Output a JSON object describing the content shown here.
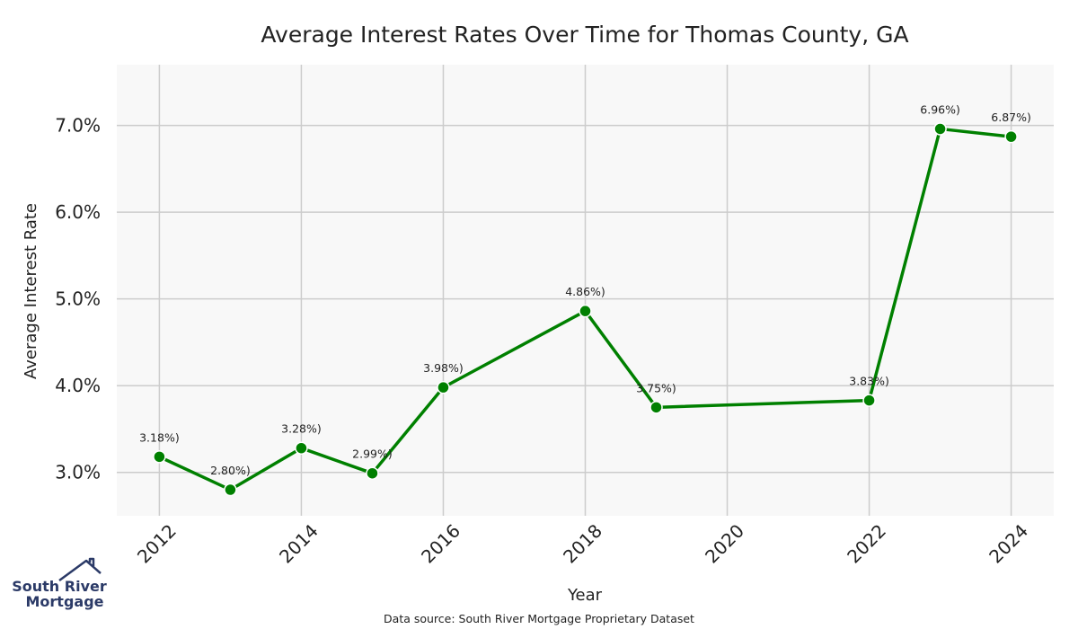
{
  "chart_data": {
    "type": "line",
    "title": "Average Interest Rates Over Time for Thomas County, GA",
    "xlabel": "Year",
    "ylabel": "Average Interest Rate",
    "x_ticks": [
      "2012",
      "2014",
      "2016",
      "2018",
      "2020",
      "2022",
      "2024"
    ],
    "y_ticks": [
      "3.0%",
      "4.0%",
      "5.0%",
      "6.0%",
      "7.0%"
    ],
    "xlim": [
      2011.4,
      2024.6
    ],
    "ylim": [
      2.5,
      7.7
    ],
    "grid": true,
    "series": [
      {
        "color": "#008000",
        "points": [
          {
            "x": 2012,
            "y": 3.18,
            "label": "3.18%)"
          },
          {
            "x": 2013,
            "y": 2.8,
            "label": "2.80%)"
          },
          {
            "x": 2014,
            "y": 3.28,
            "label": "3.28%)"
          },
          {
            "x": 2015,
            "y": 2.99,
            "label": "2.99%)"
          },
          {
            "x": 2016,
            "y": 3.98,
            "label": "3.98%)"
          },
          {
            "x": 2018,
            "y": 4.86,
            "label": "4.86%)"
          },
          {
            "x": 2019,
            "y": 3.75,
            "label": "3.75%)"
          },
          {
            "x": 2022,
            "y": 3.83,
            "label": "3.83%)"
          },
          {
            "x": 2023,
            "y": 6.96,
            "label": "6.96%)"
          },
          {
            "x": 2024,
            "y": 6.87,
            "label": "6.87%)"
          }
        ]
      }
    ],
    "source": "Data source: South River Mortgage Proprietary Dataset"
  },
  "logo": {
    "line1": "South River",
    "line2": "Mortgage",
    "icon": "house-roof-icon",
    "color": "#2b3a67"
  }
}
